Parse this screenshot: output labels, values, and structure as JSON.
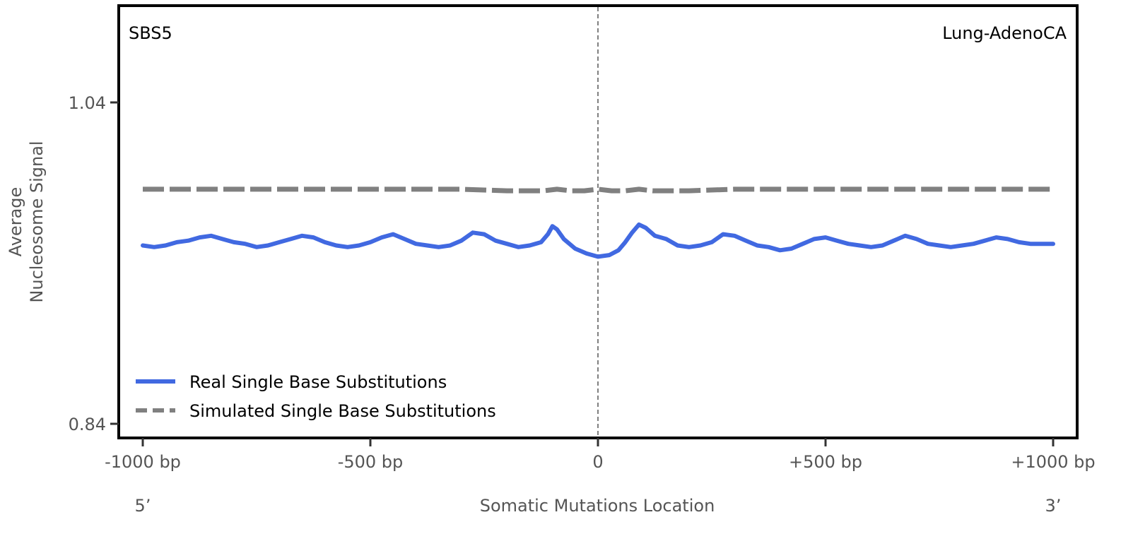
{
  "chart_data": {
    "type": "line",
    "signature_label": "SBS5",
    "cancer_type_label": "Lung-AdenoCA",
    "xlabel": "Somatic Mutations Location",
    "ylabel_line1": "Average",
    "ylabel_line2": "Nucleosome Signal",
    "end_5_label": "5’",
    "end_3_label": "3’",
    "xlim": [
      -1000,
      1000
    ],
    "ylim": [
      0.84,
      1.04
    ],
    "x_ticks": [
      {
        "value": -1000,
        "label": "-1000 bp"
      },
      {
        "value": -500,
        "label": "-500 bp"
      },
      {
        "value": 0,
        "label": "0"
      },
      {
        "value": 500,
        "label": "+500 bp"
      },
      {
        "value": 1000,
        "label": "+1000 bp"
      }
    ],
    "y_ticks": [
      {
        "value": 1.04,
        "label": "1.04"
      },
      {
        "value": 0.84,
        "label": "0.84"
      }
    ],
    "vline_x": 0,
    "legend_position": "lower-left",
    "series": [
      {
        "name": "Real Single Base Substitutions",
        "color": "#4169e1",
        "style": "solid",
        "points": [
          [
            -1000,
            0.951
          ],
          [
            -975,
            0.95
          ],
          [
            -950,
            0.951
          ],
          [
            -925,
            0.953
          ],
          [
            -900,
            0.954
          ],
          [
            -875,
            0.956
          ],
          [
            -850,
            0.957
          ],
          [
            -825,
            0.955
          ],
          [
            -800,
            0.953
          ],
          [
            -775,
            0.952
          ],
          [
            -750,
            0.95
          ],
          [
            -725,
            0.951
          ],
          [
            -700,
            0.953
          ],
          [
            -675,
            0.955
          ],
          [
            -650,
            0.957
          ],
          [
            -625,
            0.956
          ],
          [
            -600,
            0.953
          ],
          [
            -575,
            0.951
          ],
          [
            -550,
            0.95
          ],
          [
            -525,
            0.951
          ],
          [
            -500,
            0.953
          ],
          [
            -475,
            0.956
          ],
          [
            -450,
            0.958
          ],
          [
            -425,
            0.955
          ],
          [
            -400,
            0.952
          ],
          [
            -375,
            0.951
          ],
          [
            -350,
            0.95
          ],
          [
            -325,
            0.951
          ],
          [
            -300,
            0.954
          ],
          [
            -275,
            0.959
          ],
          [
            -250,
            0.958
          ],
          [
            -225,
            0.954
          ],
          [
            -200,
            0.952
          ],
          [
            -175,
            0.95
          ],
          [
            -150,
            0.951
          ],
          [
            -125,
            0.953
          ],
          [
            -110,
            0.958
          ],
          [
            -100,
            0.963
          ],
          [
            -90,
            0.961
          ],
          [
            -75,
            0.955
          ],
          [
            -50,
            0.949
          ],
          [
            -25,
            0.946
          ],
          [
            0,
            0.944
          ],
          [
            25,
            0.945
          ],
          [
            45,
            0.948
          ],
          [
            60,
            0.953
          ],
          [
            75,
            0.959
          ],
          [
            90,
            0.964
          ],
          [
            105,
            0.962
          ],
          [
            125,
            0.957
          ],
          [
            150,
            0.955
          ],
          [
            175,
            0.951
          ],
          [
            200,
            0.95
          ],
          [
            225,
            0.951
          ],
          [
            250,
            0.953
          ],
          [
            275,
            0.958
          ],
          [
            300,
            0.957
          ],
          [
            325,
            0.954
          ],
          [
            350,
            0.951
          ],
          [
            375,
            0.95
          ],
          [
            400,
            0.948
          ],
          [
            425,
            0.949
          ],
          [
            450,
            0.952
          ],
          [
            475,
            0.955
          ],
          [
            500,
            0.956
          ],
          [
            525,
            0.954
          ],
          [
            550,
            0.952
          ],
          [
            575,
            0.951
          ],
          [
            600,
            0.95
          ],
          [
            625,
            0.951
          ],
          [
            650,
            0.954
          ],
          [
            675,
            0.957
          ],
          [
            700,
            0.955
          ],
          [
            725,
            0.952
          ],
          [
            750,
            0.951
          ],
          [
            775,
            0.95
          ],
          [
            800,
            0.951
          ],
          [
            825,
            0.952
          ],
          [
            850,
            0.954
          ],
          [
            875,
            0.956
          ],
          [
            900,
            0.955
          ],
          [
            925,
            0.953
          ],
          [
            950,
            0.952
          ],
          [
            975,
            0.952
          ],
          [
            1000,
            0.952
          ]
        ]
      },
      {
        "name": "Simulated Single Base Substitutions",
        "color": "#808080",
        "style": "dashed",
        "points": [
          [
            -1000,
            0.986
          ],
          [
            -900,
            0.986
          ],
          [
            -800,
            0.986
          ],
          [
            -700,
            0.986
          ],
          [
            -600,
            0.986
          ],
          [
            -500,
            0.986
          ],
          [
            -400,
            0.986
          ],
          [
            -300,
            0.986
          ],
          [
            -200,
            0.985
          ],
          [
            -150,
            0.985
          ],
          [
            -120,
            0.985
          ],
          [
            -90,
            0.986
          ],
          [
            -60,
            0.985
          ],
          [
            -30,
            0.985
          ],
          [
            0,
            0.986
          ],
          [
            30,
            0.985
          ],
          [
            60,
            0.985
          ],
          [
            90,
            0.986
          ],
          [
            120,
            0.985
          ],
          [
            200,
            0.985
          ],
          [
            300,
            0.986
          ],
          [
            400,
            0.986
          ],
          [
            500,
            0.986
          ],
          [
            600,
            0.986
          ],
          [
            700,
            0.986
          ],
          [
            800,
            0.986
          ],
          [
            900,
            0.986
          ],
          [
            1000,
            0.986
          ]
        ]
      }
    ]
  }
}
